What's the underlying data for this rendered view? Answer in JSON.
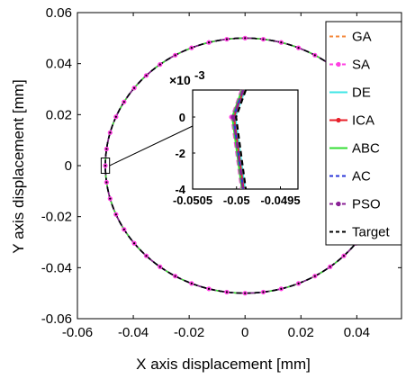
{
  "chart_data": {
    "type": "line",
    "title": "",
    "xlabel": "X axis displacement [mm]",
    "ylabel": "Y axis displacement [mm]",
    "xlim": [
      -0.06,
      0.056
    ],
    "ylim": [
      -0.06,
      0.06
    ],
    "x_ticks": [
      "-0.06",
      "-0.04",
      "-0.02",
      "0",
      "0.02",
      "0.04"
    ],
    "x_tick_values": [
      -0.06,
      -0.04,
      -0.02,
      0,
      0.02,
      0.04
    ],
    "y_ticks": [
      "0.06",
      "0.04",
      "0.02",
      "0",
      "-0.02",
      "-0.04",
      "-0.06"
    ],
    "y_tick_values": [
      0.06,
      0.04,
      0.02,
      0,
      -0.02,
      -0.04,
      -0.06
    ],
    "grid": false,
    "legend_position": "top-right, outside plot area",
    "trajectory": {
      "shape": "circle",
      "center": [
        0,
        0
      ],
      "radius": 0.05,
      "marker_points": 48
    },
    "series": [
      {
        "name": "GA",
        "color": "#f4873a",
        "dash": "dashed",
        "marker": "none",
        "inset_x_offset": 1e-05
      },
      {
        "name": "SA",
        "color": "#ff3fe2",
        "dash": "dashed",
        "marker": "dot",
        "inset_x_offset": -2.8e-05
      },
      {
        "name": "DE",
        "color": "#3fe6e6",
        "dash": "solid",
        "marker": "none",
        "inset_x_offset": 1.5e-05
      },
      {
        "name": "ICA",
        "color": "#e8212b",
        "dash": "solid",
        "marker": "dot",
        "inset_x_offset": 0.0
      },
      {
        "name": "ABC",
        "color": "#33dd33",
        "dash": "solid",
        "marker": "none",
        "inset_x_offset": -1.8e-05
      },
      {
        "name": "AC",
        "color": "#2a35d8",
        "dash": "dashed",
        "marker": "none",
        "inset_x_offset": -5e-06
      },
      {
        "name": "PSO",
        "color": "#8a2096",
        "dash": "dashdot",
        "marker": "dot",
        "inset_x_offset": -8e-06
      },
      {
        "name": "Target",
        "color": "#000000",
        "dash": "dashed",
        "marker": "none",
        "inset_x_offset": 2.5e-05
      }
    ],
    "inset": {
      "exponent_label": "×10",
      "exponent_power": "-3",
      "xlim": [
        -0.0505,
        -0.0493
      ],
      "ylim": [
        -0.004,
        0.0015
      ],
      "x_ticks": [
        "-0.0505",
        "-0.05",
        "-0.0495"
      ],
      "x_tick_values": [
        -0.0505,
        -0.05,
        -0.0495
      ],
      "y_ticks": [
        "0",
        "-2",
        "-4"
      ],
      "y_tick_values": [
        0,
        -0.002,
        -0.004
      ],
      "zoom_box_x": [
        -0.0515,
        -0.0485
      ],
      "zoom_box_y": [
        -0.003,
        0.003
      ]
    }
  }
}
